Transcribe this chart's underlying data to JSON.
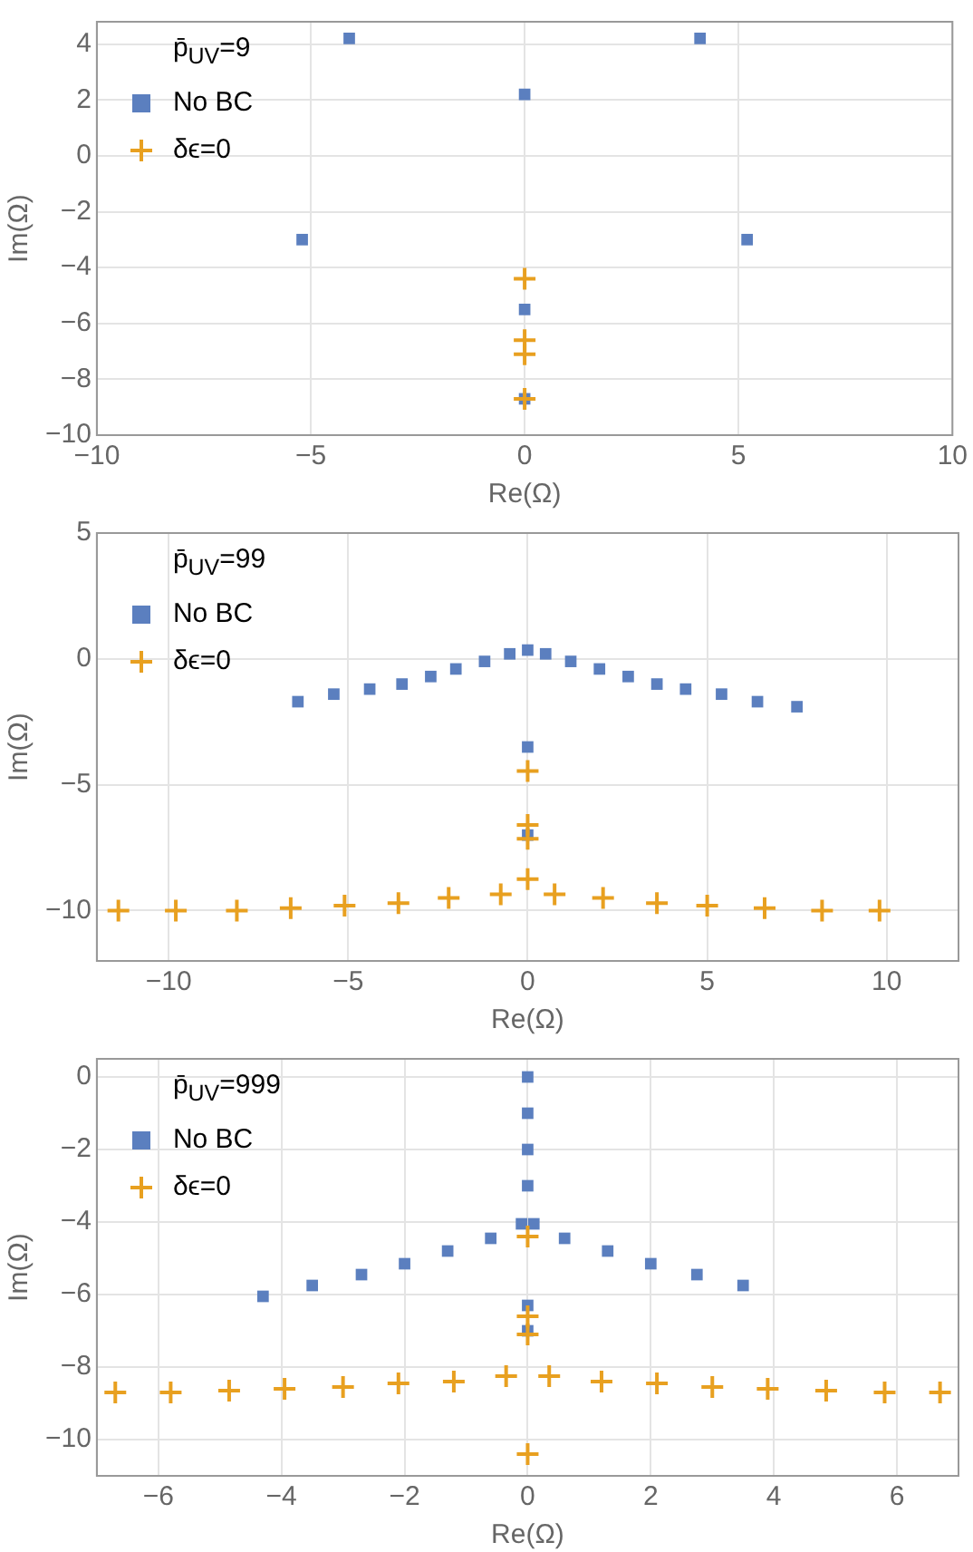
{
  "chart_data": [
    {
      "type": "scatter",
      "xlabel": "Re(Ω)",
      "ylabel": "Im(Ω)",
      "legend_title": "p̄$_{UV}$=9",
      "legend": "top left",
      "grid": true,
      "xlim": [
        -10,
        10
      ],
      "xticks": [
        -10,
        -5,
        0,
        5,
        10
      ],
      "ylim": [
        -10,
        4.8
      ],
      "yticks": [
        -10,
        -8,
        -6,
        -4,
        -2,
        0,
        2,
        4
      ],
      "series": [
        {
          "name": "No BC",
          "color": "#5b7fbf",
          "marker": "square",
          "x": [
            -4.1,
            4.1,
            0,
            -5.2,
            5.2,
            0,
            0
          ],
          "values": [
            4.2,
            4.2,
            2.2,
            -3,
            -3,
            -5.5,
            -8.7
          ]
        },
        {
          "name": "δϵ=0",
          "color": "#e8a020",
          "marker": "cross",
          "x": [
            0,
            0,
            0,
            0
          ],
          "values": [
            -4.4,
            -6.6,
            -7.1,
            -8.7
          ]
        }
      ]
    },
    {
      "type": "scatter",
      "xlabel": "Re(Ω)",
      "ylabel": "Im(Ω)",
      "legend_title": "p̄$_{UV}$=99",
      "legend": "top left",
      "grid": true,
      "xlim": [
        -12,
        12
      ],
      "xticks": [
        -10,
        -5,
        0,
        5,
        10
      ],
      "ylim": [
        -12,
        5
      ],
      "yticks": [
        -10,
        -5,
        0,
        5
      ],
      "series": [
        {
          "name": "No BC",
          "color": "#5b7fbf",
          "marker": "square",
          "x": [
            -6.4,
            -5.4,
            -4.4,
            -3.5,
            -2.7,
            -2.0,
            -1.2,
            -0.5,
            0,
            0.5,
            1.2,
            2.0,
            2.8,
            3.6,
            4.4,
            5.4,
            6.4,
            7.5,
            0,
            0
          ],
          "values": [
            -1.7,
            -1.4,
            -1.2,
            -1.0,
            -0.7,
            -0.4,
            -0.1,
            0.2,
            0.35,
            0.2,
            -0.1,
            -0.4,
            -0.7,
            -1.0,
            -1.2,
            -1.4,
            -1.7,
            -1.9,
            -3.5,
            -7.0
          ]
        },
        {
          "name": "δϵ=0",
          "color": "#e8a020",
          "marker": "cross",
          "x": [
            0,
            0,
            0,
            0,
            -11.4,
            -9.8,
            -8.1,
            -6.6,
            -5.1,
            -3.6,
            -2.2,
            -0.75,
            0.75,
            2.1,
            3.6,
            5.0,
            6.6,
            8.2,
            9.8
          ],
          "values": [
            -4.45,
            -6.6,
            -7.15,
            -8.75,
            -10.0,
            -10.0,
            -10.0,
            -9.9,
            -9.8,
            -9.7,
            -9.5,
            -9.35,
            -9.35,
            -9.5,
            -9.7,
            -9.8,
            -9.9,
            -10.0,
            -10.0
          ]
        }
      ]
    },
    {
      "type": "scatter",
      "xlabel": "Re(Ω)",
      "ylabel": "Im(Ω)",
      "legend_title": "p̄$_{UV}$=999",
      "legend": "top left",
      "grid": true,
      "xlim": [
        -7,
        7
      ],
      "xticks": [
        -6,
        -4,
        -2,
        0,
        2,
        4,
        6
      ],
      "ylim": [
        -11,
        0.5
      ],
      "yticks": [
        -10,
        -8,
        -6,
        -4,
        -2,
        0
      ],
      "series": [
        {
          "name": "No BC",
          "color": "#5b7fbf",
          "marker": "square",
          "x": [
            0,
            0,
            0,
            0,
            -0.1,
            0.1,
            0,
            0,
            -4.3,
            -3.5,
            -2.7,
            -2.0,
            -1.3,
            -0.6,
            0.6,
            1.3,
            2.0,
            2.75,
            3.5
          ],
          "values": [
            0,
            -1,
            -2,
            -3,
            -4.05,
            -4.05,
            -6.3,
            -7.0,
            -6.05,
            -5.75,
            -5.45,
            -5.15,
            -4.8,
            -4.45,
            -4.45,
            -4.8,
            -5.15,
            -5.45,
            -5.75
          ]
        },
        {
          "name": "δϵ=0",
          "color": "#e8a020",
          "marker": "cross",
          "x": [
            0,
            0,
            0,
            0,
            -6.7,
            -5.8,
            -4.85,
            -3.95,
            -3.0,
            -2.1,
            -1.2,
            -0.35,
            0.35,
            1.2,
            2.1,
            3.0,
            3.9,
            4.85,
            5.8,
            6.7
          ],
          "values": [
            -4.4,
            -6.6,
            -7.1,
            -10.4,
            -8.7,
            -8.7,
            -8.65,
            -8.6,
            -8.55,
            -8.45,
            -8.4,
            -8.25,
            -8.25,
            -8.4,
            -8.45,
            -8.55,
            -8.6,
            -8.65,
            -8.7,
            -8.7
          ]
        }
      ]
    }
  ]
}
